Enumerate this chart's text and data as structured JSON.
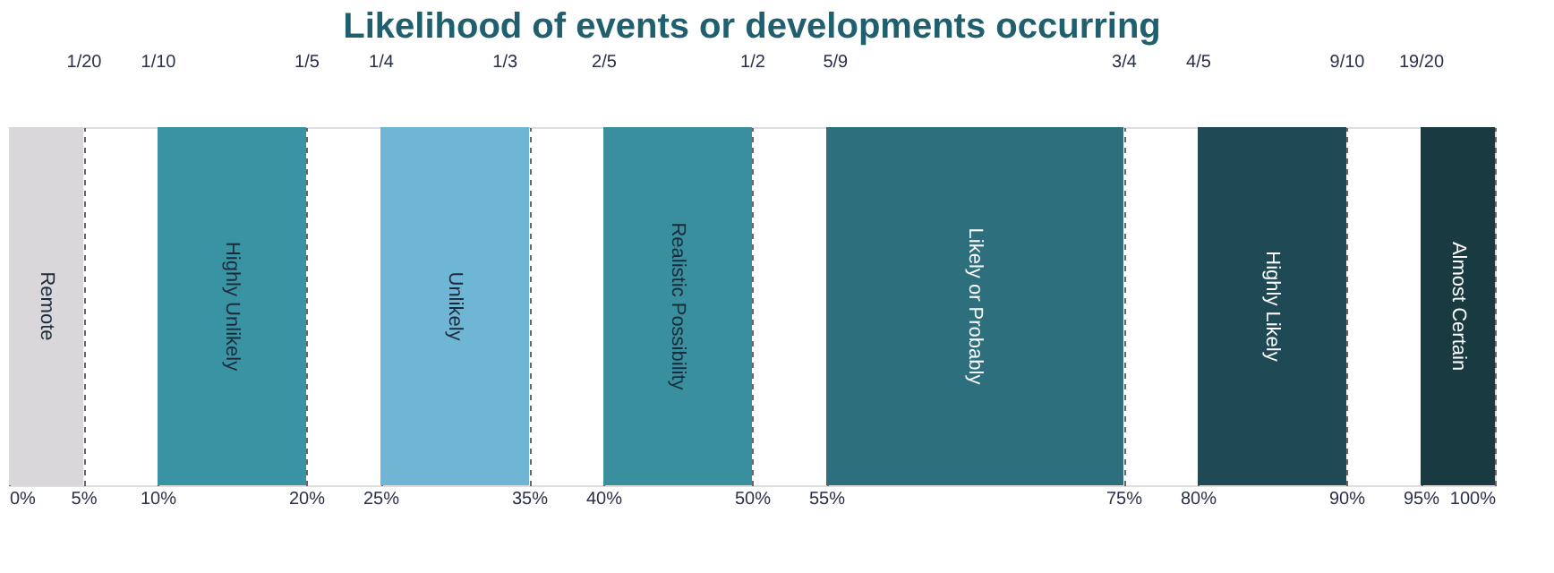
{
  "chart_data": {
    "type": "bar",
    "orientation": "horizontal",
    "title": "Likelihood of events or developments occurring",
    "categories": [
      null
    ],
    "xlim": [
      0,
      100
    ],
    "xticks": [
      {
        "value": 0,
        "label": "0%"
      },
      {
        "value": 5,
        "label": "5%"
      },
      {
        "value": 10,
        "label": "10%"
      },
      {
        "value": 20,
        "label": "20%"
      },
      {
        "value": 25,
        "label": "25%"
      },
      {
        "value": 35,
        "label": "35%"
      },
      {
        "value": 40,
        "label": "40%"
      },
      {
        "value": 50,
        "label": "50%"
      },
      {
        "value": 55,
        "label": "55%"
      },
      {
        "value": 75,
        "label": "75%"
      },
      {
        "value": 80,
        "label": "80%"
      },
      {
        "value": 90,
        "label": "90%"
      },
      {
        "value": 95,
        "label": "95%"
      },
      {
        "value": 100,
        "label": "100%"
      }
    ],
    "x2lim": [
      0,
      1
    ],
    "x2ticks": [
      {
        "value": 0.05,
        "label": "1/20"
      },
      {
        "value": 0.1,
        "label": "1/10"
      },
      {
        "value": 0.2,
        "label": "1/5"
      },
      {
        "value": 0.25,
        "label": "1/4"
      },
      {
        "value": 0.3333,
        "label": "1/3"
      },
      {
        "value": 0.4,
        "label": "2/5"
      },
      {
        "value": 0.5,
        "label": "1/2"
      },
      {
        "value": 0.5556,
        "label": "5/9"
      },
      {
        "value": 0.75,
        "label": "3/4"
      },
      {
        "value": 0.8,
        "label": "4/5"
      },
      {
        "value": 0.9,
        "label": "9/10"
      },
      {
        "value": 0.95,
        "label": "19/20"
      }
    ],
    "series": [
      {
        "name": "Remote",
        "color": "#d9d7da",
        "base": [
          0
        ],
        "values": [
          5
        ]
      },
      {
        "name": "Highly Unlikely",
        "color": "#3a93a3",
        "base": [
          10
        ],
        "values": [
          10
        ]
      },
      {
        "name": "Unlikely",
        "color": "#6fb5d4",
        "base": [
          25
        ],
        "values": [
          10
        ]
      },
      {
        "name": "Realistic Possibility",
        "color": "#3a8f9f",
        "base": [
          40
        ],
        "values": [
          10
        ]
      },
      {
        "name": "Likely or Probably",
        "color": "#2e6f7e",
        "base": [
          55
        ],
        "values": [
          20
        ]
      },
      {
        "name": "Highly Likely",
        "color": "#1f4a55",
        "base": [
          80
        ],
        "values": [
          10
        ]
      },
      {
        "name": "Almost Certain",
        "color": "#1a3a42",
        "base": [
          95
        ],
        "values": [
          5
        ]
      }
    ],
    "grid": "x"
  }
}
